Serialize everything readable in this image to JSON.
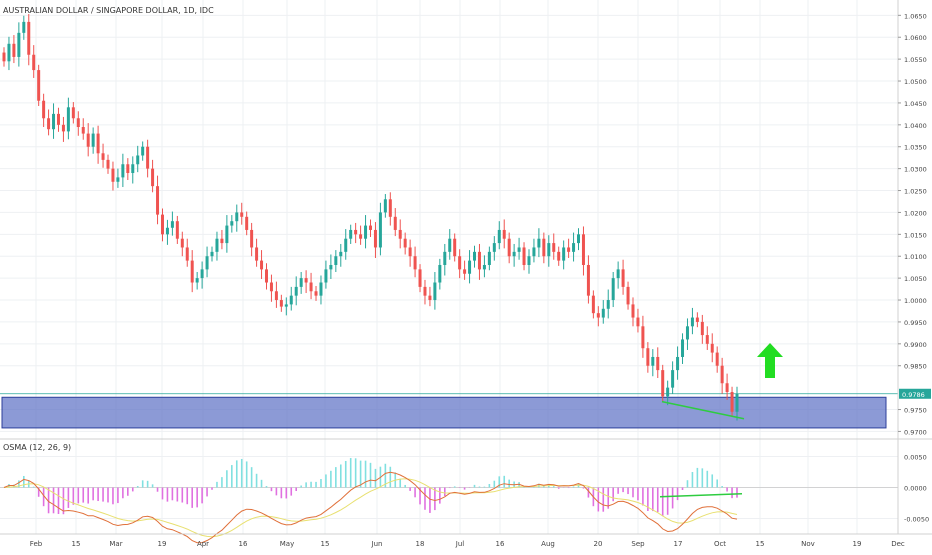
{
  "chart_data": [
    {
      "type": "candlestick",
      "title": "AUSTRALIAN DOLLAR / SINGAPORE DOLLAR, 1D, IDC",
      "ylim": [
        0.9685,
        1.0685
      ],
      "y_ticks": [
        1.065,
        1.06,
        1.055,
        1.05,
        1.045,
        1.04,
        1.035,
        1.03,
        1.025,
        1.02,
        1.015,
        1.01,
        1.005,
        1.0,
        0.995,
        0.99,
        0.985,
        0.975,
        0.97
      ],
      "y_tick_labels": [
        "1.0650",
        "1.0600",
        "1.0550",
        "1.0500",
        "1.0450",
        "1.0400",
        "1.0350",
        "1.0300",
        "1.0250",
        "1.0200",
        "1.0150",
        "1.0100",
        "1.0050",
        "1.0000",
        "0.9950",
        "0.9900",
        "0.9850",
        "0.9750",
        "0.9700"
      ],
      "x_labels": [
        "Feb",
        "15",
        "Mar",
        "19",
        "Apr",
        "16",
        "May",
        "15",
        "Jun",
        "18",
        "Jul",
        "16",
        "Aug",
        "20",
        "Sep",
        "17",
        "Oct",
        "15",
        "Nov",
        "19",
        "Dec"
      ],
      "last_price": 0.9786,
      "last_price_label": "0.9786",
      "colors": {
        "up": "#26a69a",
        "down": "#ef5350",
        "zone": "#5b6fc4",
        "divergence": "#2ecc40",
        "arrow": "#22dd22",
        "price_line": "#26a69a"
      },
      "support_zone": [
        0.9708,
        0.9778
      ],
      "divergence_line": {
        "from": [
          0.9768,
          "2018-09-10"
        ],
        "to": [
          0.9729,
          "2018-10-09"
        ]
      },
      "annotation": "up-arrow",
      "closes": [
        1.0545,
        1.0585,
        1.0555,
        1.061,
        1.0635,
        1.056,
        1.0525,
        1.0455,
        1.0415,
        1.039,
        1.0425,
        1.04,
        1.0385,
        1.044,
        1.0415,
        1.0395,
        1.038,
        1.035,
        1.038,
        1.0335,
        1.032,
        1.03,
        1.027,
        1.028,
        1.031,
        1.029,
        1.031,
        1.033,
        1.035,
        1.03,
        1.026,
        1.0195,
        1.015,
        1.0165,
        1.018,
        1.014,
        1.012,
        1.009,
        1.004,
        1.005,
        1.007,
        1.01,
        1.011,
        1.014,
        1.013,
        1.017,
        1.018,
        1.02,
        1.019,
        1.016,
        1.012,
        1.009,
        1.007,
        1.004,
        1.002,
        1.0,
        0.9985,
        0.999,
        1.001,
        1.003,
        1.005,
        1.004,
        1.002,
        1.001,
        1.004,
        1.007,
        1.008,
        1.01,
        1.011,
        1.014,
        1.016,
        1.015,
        1.014,
        1.017,
        1.016,
        1.012,
        1.02,
        1.023,
        1.019,
        1.016,
        1.014,
        1.012,
        1.01,
        1.007,
        1.003,
        1.001,
        1.0,
        1.004,
        1.008,
        1.011,
        1.014,
        1.01,
        1.007,
        1.006,
        1.009,
        1.011,
        1.007,
        1.008,
        1.011,
        1.013,
        1.016,
        1.014,
        1.01,
        1.011,
        1.012,
        1.008,
        1.01,
        1.012,
        1.014,
        1.01,
        1.013,
        1.011,
        1.009,
        1.012,
        1.011,
        1.013,
        1.015,
        1.008,
        1.001,
        0.997,
        0.996,
        0.998,
        1.0,
        1.005,
        1.007,
        1.003,
        0.999,
        0.996,
        0.994,
        0.989,
        0.985,
        0.987,
        0.984,
        0.978,
        0.98,
        0.984,
        0.987,
        0.991,
        0.994,
        0.996,
        0.995,
        0.992,
        0.99,
        0.988,
        0.985,
        0.981,
        0.979,
        0.9745,
        0.9786
      ]
    },
    {
      "type": "line",
      "title": "OSMA (12, 26, 9)",
      "ylim": [
        -0.0075,
        0.0075
      ],
      "y_ticks": [
        0.005,
        0.0,
        -0.005
      ],
      "y_tick_labels": [
        "0.0050",
        "0.0000",
        "-0.0050"
      ],
      "indicator": "MACD",
      "params": [
        12,
        26,
        9
      ],
      "colors": {
        "macd": "#e0703a",
        "signal": "#e8e070",
        "hist_pos": "#80e0e0",
        "hist_neg": "#e070e0",
        "lookalike": "#2ecc40"
      },
      "divergence_line": {
        "from": [
          -0.0015,
          "2018-09-10"
        ],
        "to": [
          -0.001,
          "2018-10-09"
        ]
      }
    }
  ]
}
